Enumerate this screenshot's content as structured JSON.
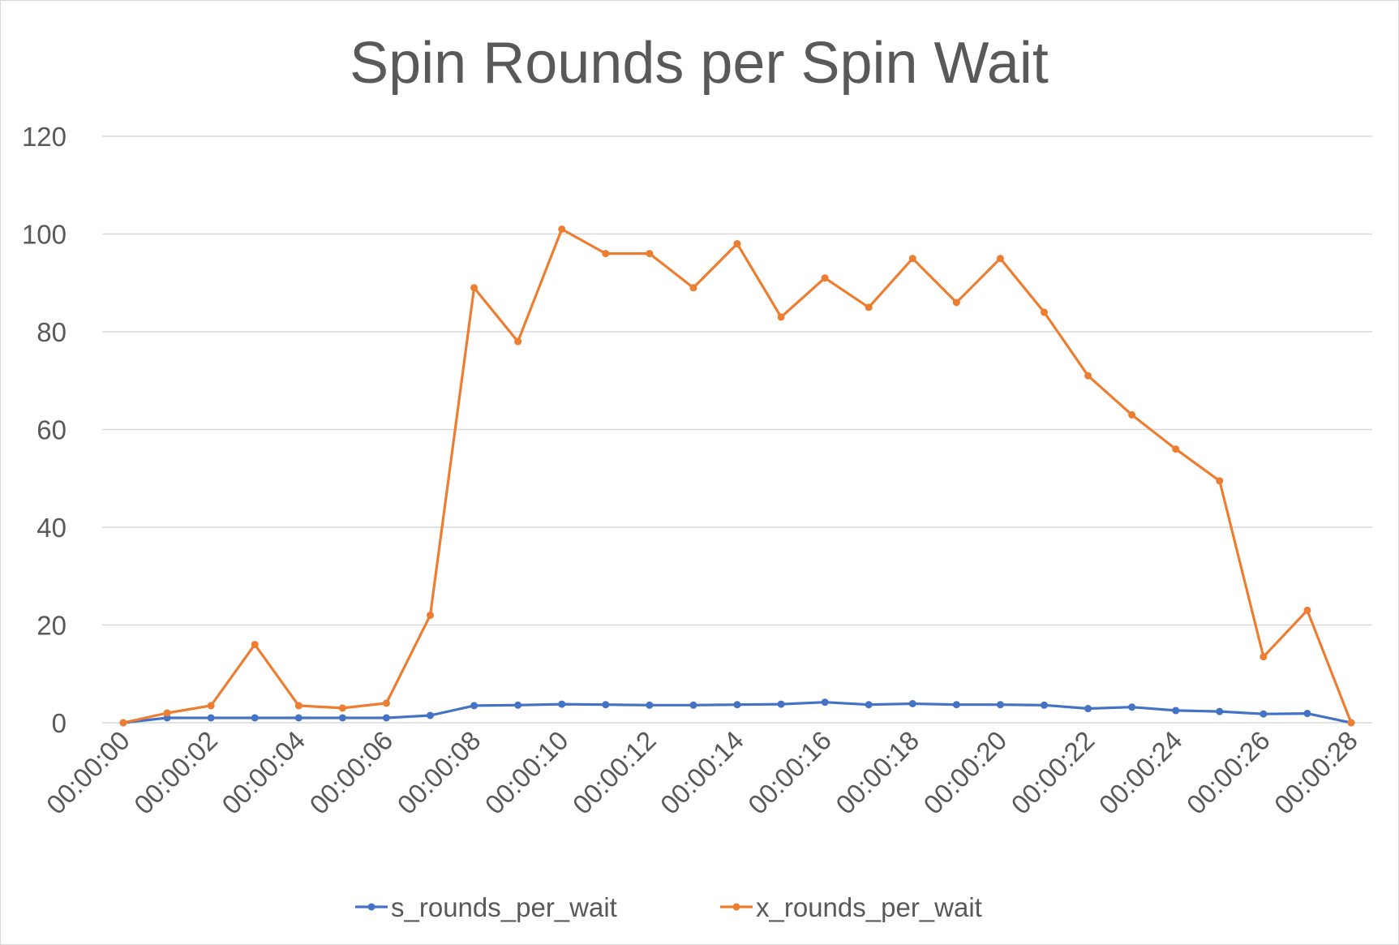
{
  "chart_data": {
    "type": "line",
    "title": "Spin Rounds per Spin Wait",
    "xlabel": "",
    "ylabel": "",
    "ylim": [
      0,
      120
    ],
    "yticks": [
      0,
      20,
      40,
      60,
      80,
      100,
      120
    ],
    "grid": true,
    "legend_position": "bottom",
    "x": [
      "00:00:00",
      "00:00:01",
      "00:00:02",
      "00:00:03",
      "00:00:04",
      "00:00:05",
      "00:00:06",
      "00:00:07",
      "00:00:08",
      "00:00:09",
      "00:00:10",
      "00:00:11",
      "00:00:12",
      "00:00:13",
      "00:00:14",
      "00:00:15",
      "00:00:16",
      "00:00:17",
      "00:00:18",
      "00:00:19",
      "00:00:20",
      "00:00:21",
      "00:00:22",
      "00:00:23",
      "00:00:24",
      "00:00:25",
      "00:00:26",
      "00:00:27",
      "00:00:28"
    ],
    "xtick_labels": [
      "00:00:00",
      "00:00:02",
      "00:00:04",
      "00:00:06",
      "00:00:08",
      "00:00:10",
      "00:00:12",
      "00:00:14",
      "00:00:16",
      "00:00:18",
      "00:00:20",
      "00:00:22",
      "00:00:24",
      "00:00:26",
      "00:00:28"
    ],
    "series": [
      {
        "name": "s_rounds_per_wait",
        "color": "#4472c4",
        "values": [
          0,
          1,
          1,
          1,
          1,
          1,
          1,
          1.5,
          3.5,
          3.6,
          3.8,
          3.7,
          3.6,
          3.6,
          3.7,
          3.8,
          4.2,
          3.7,
          3.9,
          3.7,
          3.7,
          3.6,
          2.9,
          3.2,
          2.5,
          2.3,
          1.8,
          1.9,
          0
        ]
      },
      {
        "name": "x_rounds_per_wait",
        "color": "#ed7d31",
        "values": [
          0,
          2,
          3.5,
          16,
          3.5,
          3,
          4,
          22,
          89,
          78,
          101,
          96,
          96,
          89,
          98,
          83,
          91,
          85,
          95,
          86,
          95,
          84,
          71,
          63,
          56,
          49.5,
          13.5,
          23,
          0
        ]
      }
    ]
  }
}
